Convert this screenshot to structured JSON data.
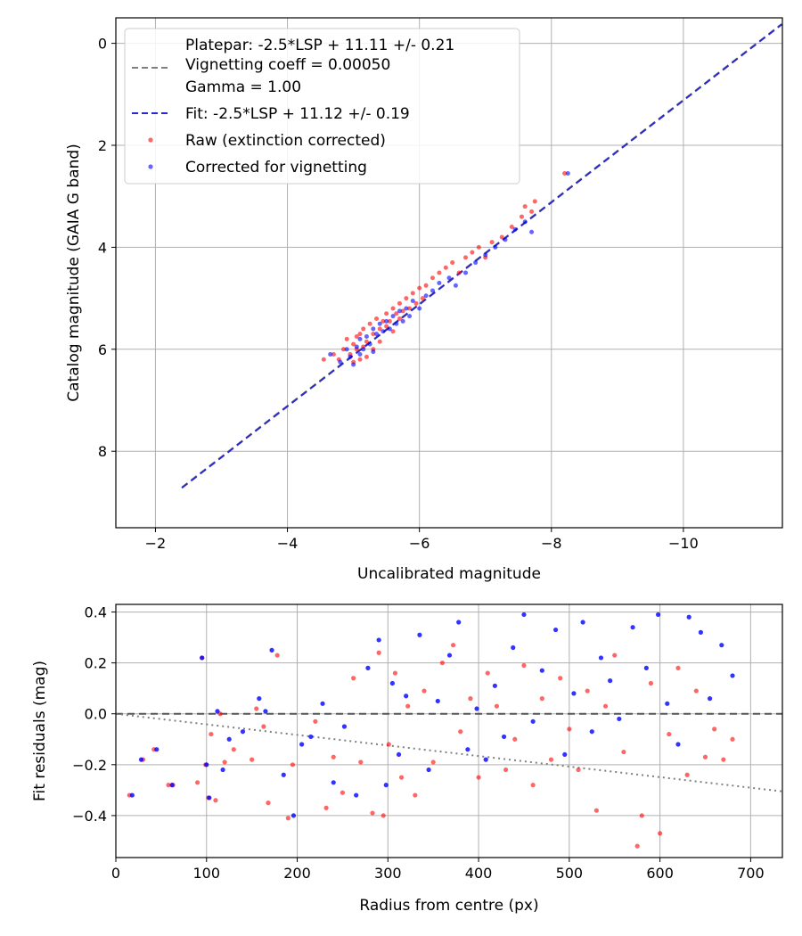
{
  "chart_data": [
    {
      "type": "scatter",
      "title": "",
      "xlabel": "Uncalibrated magnitude",
      "ylabel": "Catalog magnitude (GAIA G band)",
      "xlim": [
        -1.4,
        -11.5
      ],
      "ylim": [
        9.5,
        -0.5
      ],
      "x_inverted": true,
      "y_inverted": true,
      "xticks": [
        -2,
        -4,
        -6,
        -8,
        -10
      ],
      "xtick_labels": [
        "−2",
        "−4",
        "−6",
        "−8",
        "−10"
      ],
      "yticks": [
        0,
        2,
        4,
        6,
        8
      ],
      "ytick_labels": [
        "0",
        "2",
        "4",
        "6",
        "8"
      ],
      "grid": true,
      "legend_position": "top-left",
      "legend": {
        "platepar_lines": [
          "Platepar: -2.5*LSP + 11.11 +/- 0.21",
          "Vignetting coeff = 0.00050",
          "Gamma = 1.00"
        ],
        "fit_label": "Fit: -2.5*LSP + 11.12 +/- 0.19",
        "raw_label": "Raw (extinction corrected)",
        "corrected_label": "Corrected for vignetting"
      },
      "colors": {
        "raw": "#ff0000",
        "corrected": "#0000ff",
        "fit": "#2a2acc",
        "platepar": "#7f7f7f"
      },
      "fit_line": {
        "slope": 1.0,
        "intercept": 11.12
      },
      "platepar_line": {
        "slope": 1.0,
        "intercept": 11.11
      },
      "series": [
        {
          "name": "Raw (extinction corrected)",
          "color": "#ff0000",
          "x": [
            -4.55,
            -4.7,
            -4.78,
            -4.85,
            -4.9,
            -4.95,
            -5.0,
            -5.0,
            -5.05,
            -5.05,
            -5.1,
            -5.1,
            -5.15,
            -5.15,
            -5.2,
            -5.2,
            -5.25,
            -5.3,
            -5.3,
            -5.35,
            -5.4,
            -5.4,
            -5.45,
            -5.5,
            -5.5,
            -5.55,
            -5.6,
            -5.6,
            -5.65,
            -5.7,
            -5.7,
            -5.75,
            -5.8,
            -5.85,
            -5.9,
            -5.95,
            -6.0,
            -6.05,
            -6.1,
            -6.2,
            -6.3,
            -6.4,
            -6.5,
            -6.6,
            -6.7,
            -6.8,
            -6.9,
            -7.0,
            -7.1,
            -7.25,
            -7.4,
            -7.55,
            -7.6,
            -7.7,
            -7.75,
            -8.2
          ],
          "y": [
            6.2,
            6.1,
            6.2,
            6.0,
            5.8,
            6.1,
            6.25,
            5.9,
            6.0,
            5.75,
            6.2,
            5.7,
            5.95,
            5.6,
            6.15,
            5.85,
            5.5,
            6.0,
            5.7,
            5.4,
            5.85,
            5.6,
            5.45,
            5.55,
            5.3,
            5.45,
            5.2,
            5.65,
            5.3,
            5.1,
            5.4,
            5.25,
            5.0,
            5.2,
            4.9,
            5.1,
            4.8,
            5.0,
            4.75,
            4.6,
            4.5,
            4.4,
            4.3,
            4.5,
            4.2,
            4.1,
            4.0,
            4.2,
            3.9,
            3.8,
            3.6,
            3.4,
            3.2,
            3.3,
            3.1,
            2.55
          ]
        },
        {
          "name": "Corrected for vignetting",
          "color": "#0000ff",
          "x": [
            -4.65,
            -4.8,
            -4.9,
            -4.95,
            -5.0,
            -5.05,
            -5.1,
            -5.1,
            -5.15,
            -5.2,
            -5.25,
            -5.3,
            -5.3,
            -5.35,
            -5.4,
            -5.45,
            -5.5,
            -5.55,
            -5.6,
            -5.65,
            -5.7,
            -5.75,
            -5.8,
            -5.85,
            -5.9,
            -6.0,
            -6.1,
            -6.2,
            -6.3,
            -6.45,
            -6.55,
            -6.7,
            -6.85,
            -7.0,
            -7.15,
            -7.3,
            -7.45,
            -7.6,
            -7.7,
            -8.25
          ],
          "y": [
            6.1,
            6.25,
            6.0,
            6.15,
            6.3,
            5.95,
            6.1,
            5.8,
            6.0,
            5.75,
            5.9,
            5.6,
            6.05,
            5.7,
            5.5,
            5.65,
            5.45,
            5.6,
            5.35,
            5.5,
            5.25,
            5.45,
            5.2,
            5.35,
            5.05,
            5.2,
            4.95,
            4.85,
            4.7,
            4.6,
            4.75,
            4.5,
            4.3,
            4.15,
            4.0,
            3.85,
            3.65,
            3.5,
            3.7,
            2.55
          ]
        }
      ]
    },
    {
      "type": "scatter",
      "title": "",
      "xlabel": "Radius from centre (px)",
      "ylabel": "Fit residuals (mag)",
      "xlim": [
        0,
        735
      ],
      "ylim": [
        -0.565,
        0.43
      ],
      "xticks": [
        0,
        100,
        200,
        300,
        400,
        500,
        600,
        700
      ],
      "xtick_labels": [
        "0",
        "100",
        "200",
        "300",
        "400",
        "500",
        "600",
        "700"
      ],
      "yticks": [
        -0.4,
        -0.2,
        0.0,
        0.2,
        0.4
      ],
      "ytick_labels": [
        "−0.4",
        "−0.2",
        "0.0",
        "0.2",
        "0.4"
      ],
      "grid": true,
      "colors": {
        "raw": "#ff0000",
        "corrected": "#0000ff",
        "zero_line": "#555555",
        "trend": "#808080"
      },
      "zero_line": 0.0,
      "trend_line": {
        "x": [
          0,
          735
        ],
        "y": [
          0.0,
          -0.305
        ]
      },
      "series": [
        {
          "name": "Raw (extinction corrected)",
          "color": "#ff0000",
          "x": [
            15,
            30,
            42,
            58,
            63,
            90,
            95,
            99,
            102,
            105,
            110,
            115,
            120,
            130,
            150,
            155,
            163,
            168,
            178,
            190,
            195,
            220,
            232,
            240,
            250,
            262,
            270,
            283,
            290,
            295,
            301,
            308,
            315,
            322,
            330,
            340,
            350,
            360,
            372,
            380,
            391,
            400,
            410,
            420,
            430,
            440,
            450,
            460,
            470,
            480,
            490,
            500,
            510,
            520,
            530,
            540,
            550,
            560,
            575,
            580,
            590,
            600,
            610,
            620,
            630,
            640,
            650,
            660,
            670,
            680
          ],
          "y": [
            -0.32,
            -0.18,
            -0.14,
            -0.28,
            -0.28,
            -0.27,
            0.22,
            -0.2,
            -0.33,
            -0.08,
            -0.34,
            0.0,
            -0.19,
            -0.14,
            -0.18,
            0.02,
            -0.05,
            -0.35,
            0.23,
            -0.41,
            -0.2,
            -0.03,
            -0.37,
            -0.17,
            -0.31,
            0.14,
            -0.19,
            -0.39,
            0.24,
            -0.4,
            -0.12,
            0.16,
            -0.25,
            0.03,
            -0.32,
            0.09,
            -0.19,
            0.2,
            0.27,
            -0.07,
            0.06,
            -0.25,
            0.16,
            0.03,
            -0.22,
            -0.1,
            0.19,
            -0.28,
            0.06,
            -0.18,
            0.14,
            -0.06,
            -0.22,
            0.09,
            -0.38,
            0.03,
            0.23,
            -0.15,
            -0.52,
            -0.4,
            0.12,
            -0.47,
            -0.08,
            0.18,
            -0.24,
            0.09,
            -0.17,
            -0.06,
            -0.18,
            -0.1
          ]
        },
        {
          "name": "Corrected for vignetting",
          "color": "#0000ff",
          "x": [
            18,
            28,
            45,
            62,
            95,
            100,
            103,
            112,
            118,
            125,
            140,
            158,
            165,
            172,
            185,
            196,
            205,
            215,
            228,
            240,
            252,
            265,
            278,
            290,
            298,
            305,
            312,
            320,
            335,
            345,
            355,
            368,
            378,
            388,
            398,
            408,
            418,
            428,
            438,
            450,
            460,
            470,
            485,
            495,
            505,
            515,
            525,
            535,
            545,
            555,
            570,
            585,
            598,
            608,
            620,
            632,
            645,
            655,
            668,
            680
          ],
          "y": [
            -0.32,
            -0.18,
            -0.14,
            -0.28,
            0.22,
            -0.2,
            -0.33,
            0.01,
            -0.22,
            -0.1,
            -0.07,
            0.06,
            0.01,
            0.25,
            -0.24,
            -0.4,
            -0.12,
            -0.09,
            0.04,
            -0.27,
            -0.05,
            -0.32,
            0.18,
            0.29,
            -0.28,
            0.12,
            -0.16,
            0.07,
            0.31,
            -0.22,
            0.05,
            0.23,
            0.36,
            -0.14,
            0.02,
            -0.18,
            0.11,
            -0.09,
            0.26,
            0.39,
            -0.03,
            0.17,
            0.33,
            -0.16,
            0.08,
            0.36,
            -0.07,
            0.22,
            0.13,
            -0.02,
            0.34,
            0.18,
            0.39,
            0.04,
            -0.12,
            0.38,
            0.32,
            0.06,
            0.27,
            0.15
          ]
        }
      ]
    }
  ]
}
